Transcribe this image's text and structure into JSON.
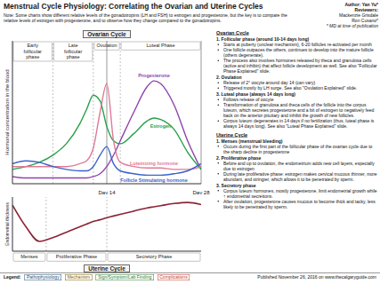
{
  "header": {
    "title": "Menstrual Cycle Physiology: Correlating the Ovarian and Uterine Cycles",
    "author": "Author: Yan Yu*",
    "reviewers_label": "Reviewers:",
    "reviewers": [
      "Mackenzie Grisdale",
      "Ron Cusano*"
    ],
    "footnote": "* MD at time of publication",
    "note": "Note: Some charts show different relative levels of the gonadotropins (LH and FSH) to estrogen and progesterone, but the key is to compare the relative levels of estrogen with progesterone, and to observe how they change compared to the gonadotropins."
  },
  "chart_data": [
    {
      "type": "line",
      "title": "Ovarian Cycle",
      "y_label": "Hormonal concentration in the blood",
      "x": [
        0,
        2,
        4,
        6,
        8,
        10,
        11,
        12,
        13,
        14,
        15,
        16,
        18,
        20,
        21,
        22,
        24,
        26,
        28
      ],
      "xlim": [
        0,
        28
      ],
      "ylim": [
        0,
        100
      ],
      "xticks": [
        {
          "value": 14,
          "label": "Day 14"
        },
        {
          "value": 28,
          "label": "Day 28"
        }
      ],
      "tick_labels": "x",
      "phases": [
        {
          "label": "Early follicular phase",
          "start": 0,
          "end": 6
        },
        {
          "label": "Late follicular phase",
          "start": 6,
          "end": 12
        },
        {
          "label": "Ovulation",
          "start": 12,
          "end": 16
        },
        {
          "label": "Luteal Phase",
          "start": 16,
          "end": 28
        }
      ],
      "series": [
        {
          "name": "Progesterone",
          "color": "#8e44ad",
          "values": [
            5,
            4,
            4,
            4,
            4,
            4,
            4,
            5,
            7,
            12,
            20,
            30,
            50,
            68,
            72,
            70,
            55,
            30,
            10
          ]
        },
        {
          "name": "Estrogen",
          "color": "#27a048",
          "values": [
            10,
            12,
            15,
            20,
            28,
            42,
            52,
            62,
            58,
            40,
            30,
            28,
            35,
            44,
            46,
            45,
            38,
            22,
            10
          ]
        },
        {
          "name": "Luteinizing hormone",
          "color": "#e07a95",
          "values": [
            12,
            12,
            12,
            12,
            12,
            14,
            16,
            25,
            50,
            70,
            30,
            15,
            12,
            11,
            11,
            11,
            10,
            10,
            12
          ]
        },
        {
          "name": "Follicle Stimulating hormone",
          "color": "#3b62c9",
          "values": [
            14,
            16,
            15,
            12,
            10,
            9,
            9,
            12,
            20,
            26,
            14,
            9,
            7,
            6,
            6,
            6,
            7,
            9,
            14
          ]
        }
      ]
    },
    {
      "type": "line",
      "title": "Uterine Cycle",
      "y_label": "Endometrial thickness",
      "x": [
        0,
        2,
        4,
        6,
        8,
        10,
        11,
        12,
        13,
        14,
        15,
        16,
        18,
        20,
        21,
        22,
        24,
        26,
        28
      ],
      "xlim": [
        0,
        28
      ],
      "ylim": [
        0,
        100
      ],
      "tick_labels": false,
      "color": "#8b2335",
      "values": [
        85,
        45,
        18,
        25,
        35,
        45,
        50,
        55,
        58,
        62,
        65,
        68,
        74,
        80,
        82,
        84,
        88,
        90,
        86
      ],
      "phases": [
        {
          "label": "Menses",
          "start": 0,
          "end": 5
        },
        {
          "label": "Proliferative Phase",
          "start": 5,
          "end": 14
        },
        {
          "label": "Secretory Phase",
          "start": 14,
          "end": 28
        }
      ]
    }
  ],
  "text_panel": {
    "sections": [
      {
        "heading": "Ovarian Cycle",
        "items": [
          {
            "title": "1. Follicular phase (around 10-14 days long)",
            "bullets": [
              "Starts at puberty (unclear mechanism), 6-20 follicles re-activated per month",
              "One follicle outpaces the others, continues to develop into the mature follicle (others degenerate).",
              "The process also involves hormones released by theca and granulosa cells (active and inhibin) that affect follicle development as well. See also \"Follicular Phase Explained\" slide."
            ]
          },
          {
            "title": "2. Ovulation",
            "bullets": [
              "Release of 2° oocyte around day 14 (can vary)",
              "Triggered mostly by LH surge. See also \"Ovulation Explained\" slide."
            ]
          },
          {
            "title": "3. Luteal phase (always 14 days long)",
            "bullets": [
              "Follows release of oocyte",
              "Transformation of granulosa and theca cells of the follicle into the corpus luteum, which secretes progesterone and a bit of estrogen to negatively feed back on the anterior pituitary and inhibit the growth of new follicles.",
              "Corpus luteum degenerates in 14 days if no fertilization (thus, luteal phase is always 14 days long). See also \"Luteal Phase Explained\" slide."
            ]
          }
        ]
      },
      {
        "heading": "Uterine Cycle",
        "items": [
          {
            "title": "1. Menses (menstrual bleeding)",
            "bullets": [
              "Occurs during the first part of the follicular phase of the ovarian cycle due to the sharp decline in progesterone"
            ]
          },
          {
            "title": "2. Proliferative phase",
            "bullets": [
              "Before and up to ovulation, the endometrium adds new cell layers, especially due to estrogen",
              "During late proliferative phase: estrogen makes cervical mucous thinner, more abundant, and stringier, which allows it to be penetrated by sperm."
            ]
          },
          {
            "title": "3. Secretory phase",
            "bullets": [
              "Corpus luteum hormones, mostly progesterone, limit endometrial growth while ↑ endometrial secretions.",
              "After ovulation, progesterone causes mucous to become thick and tacky, less likely to be penetrated by sperm."
            ]
          }
        ]
      }
    ]
  },
  "footer": {
    "legend_label": "Legend:",
    "legend": [
      {
        "label": "Pathophysiology",
        "color": "#1f4e79"
      },
      {
        "label": "Mechanism",
        "color": "#7f6000"
      },
      {
        "label": "Sign/Symptom/Lab Finding",
        "color": "#2e7d32"
      },
      {
        "label": "Complications",
        "color": "#c0392b"
      }
    ],
    "published": "Published November 26, 2016 on www.thecalgaryguide.com"
  }
}
